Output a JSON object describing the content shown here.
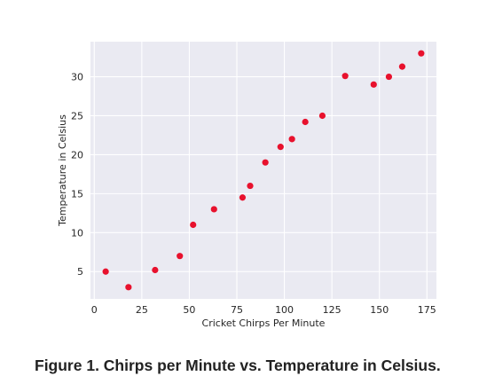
{
  "caption": "Figure 1. Chirps per Minute vs. Temperature in Celsius.",
  "chart_data": {
    "type": "scatter",
    "xlabel": "Cricket Chirps Per Minute",
    "ylabel": "Temperature in Celsius",
    "xlim": [
      -2,
      180
    ],
    "ylim": [
      1.5,
      34.5
    ],
    "xticks": [
      0,
      25,
      50,
      75,
      100,
      125,
      150,
      175
    ],
    "yticks": [
      5,
      10,
      15,
      20,
      25,
      30
    ],
    "grid": true,
    "background_color": "#eaeaf2",
    "marker_color": "#e8112d",
    "points": [
      {
        "x": 6,
        "y": 5
      },
      {
        "x": 18,
        "y": 3
      },
      {
        "x": 32,
        "y": 5.2
      },
      {
        "x": 45,
        "y": 7
      },
      {
        "x": 52,
        "y": 11
      },
      {
        "x": 63,
        "y": 13
      },
      {
        "x": 78,
        "y": 14.5
      },
      {
        "x": 82,
        "y": 16
      },
      {
        "x": 90,
        "y": 19
      },
      {
        "x": 98,
        "y": 21
      },
      {
        "x": 104,
        "y": 22
      },
      {
        "x": 111,
        "y": 24.2
      },
      {
        "x": 120,
        "y": 25
      },
      {
        "x": 132,
        "y": 30.1
      },
      {
        "x": 147,
        "y": 29
      },
      {
        "x": 155,
        "y": 30
      },
      {
        "x": 162,
        "y": 31.3
      },
      {
        "x": 172,
        "y": 33
      }
    ]
  }
}
